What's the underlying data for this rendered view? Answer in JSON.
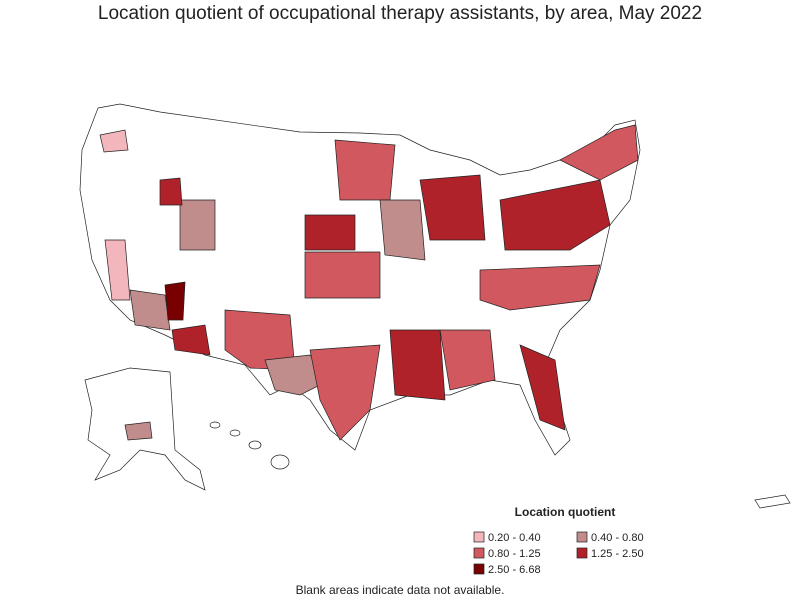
{
  "title": "Location quotient of occupational therapy assistants, by area, May 2022",
  "legend": {
    "title": "Location quotient",
    "items": [
      {
        "label": "0.20 - 0.40",
        "color": "#f4b6bd"
      },
      {
        "label": "0.40 - 0.80",
        "color": "#c08c8c"
      },
      {
        "label": "0.80 - 1.25",
        "color": "#d0585e"
      },
      {
        "label": "1.25 - 2.50",
        "color": "#b0222a"
      },
      {
        "label": "2.50 - 6.68",
        "color": "#780000"
      }
    ]
  },
  "note": "Blank areas indicate data not available."
}
